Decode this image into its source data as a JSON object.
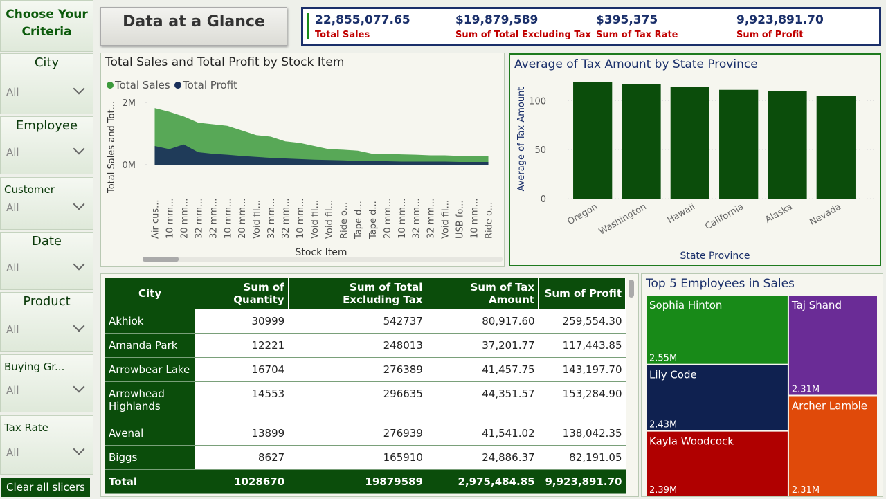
{
  "sidebar": {
    "title": "Choose Your Criteria",
    "slicers": [
      {
        "label": "City",
        "value": "All"
      },
      {
        "label": "Employee",
        "value": "All"
      },
      {
        "label": "Customer",
        "value": "All"
      },
      {
        "label": "Date",
        "value": "All"
      },
      {
        "label": "Product",
        "value": "All"
      },
      {
        "label": "Buying Gr...",
        "value": "All"
      },
      {
        "label": "Tax Rate",
        "value": "All"
      }
    ],
    "button": "Clear all slicers"
  },
  "header": {
    "title": "Data at a Glance"
  },
  "kpis": [
    {
      "value": "22,855,077.65",
      "label": "Total Sales"
    },
    {
      "value": "$19,879,589",
      "label": "Sum of Total Excluding Tax"
    },
    {
      "value": "$395,375",
      "label": "Sum of Tax Rate"
    },
    {
      "value": "9,923,891.70",
      "label": "Sum of Profit"
    }
  ],
  "chart_data": [
    {
      "type": "area",
      "title": "Total Sales and Total Profit by Stock Item",
      "x_label": "Stock Item",
      "y_label": "Total Sales and Tot...",
      "categories": [
        "Air cus...",
        "10 mm...",
        "20 mm...",
        "32 mm...",
        "32 mm...",
        "10 mm...",
        "20 mm...",
        "Void fil...",
        "32 mm...",
        "32 mm...",
        "10 mm...",
        "Void fil...",
        "Void fil...",
        "Ride o...",
        "Tape d...",
        "Tape d...",
        "20 mm...",
        "10 mm...",
        "32 mm...",
        "32 mm...",
        "Void fil...",
        "USB fo...",
        "10 mm...",
        "Ride o..."
      ],
      "series": [
        {
          "name": "Total Sales",
          "color": "#3c9a3c",
          "values": [
            1820000,
            1700000,
            1550000,
            1350000,
            1300000,
            1250000,
            1100000,
            950000,
            900000,
            750000,
            700000,
            600000,
            500000,
            480000,
            450000,
            350000,
            350000,
            330000,
            320000,
            300000,
            300000,
            280000,
            280000,
            280000
          ]
        },
        {
          "name": "Total Profit",
          "color": "#1a2f5a",
          "values": [
            600000,
            500000,
            650000,
            400000,
            350000,
            320000,
            280000,
            250000,
            220000,
            200000,
            180000,
            160000,
            150000,
            140000,
            120000,
            120000,
            110000,
            100000,
            100000,
            100000,
            100000,
            90000,
            90000,
            90000
          ]
        }
      ],
      "ylim": [
        0,
        2000000
      ],
      "yticks": [
        {
          "value": 0,
          "label": "0M"
        },
        {
          "value": 2000000,
          "label": "2M"
        }
      ]
    },
    {
      "type": "bar",
      "title": "Average of Tax Amount by State Province",
      "x_label": "State Province",
      "y_label": "Average of Tax Amount",
      "categories": [
        "Oregon",
        "Washington",
        "Hawaii",
        "California",
        "Alaska",
        "Nevada"
      ],
      "values": [
        119,
        117,
        114,
        111,
        110,
        105
      ],
      "color": "#0b4d0b",
      "ylim": [
        0,
        120
      ],
      "yticks": [
        0,
        50,
        100
      ],
      "grid": true
    },
    {
      "type": "treemap",
      "title": "Top 5 Employees in Sales",
      "categories": [
        "Sophia Hinton",
        "Lily Code",
        "Kayla Woodcock",
        "Taj Shand",
        "Archer Lamble"
      ],
      "values": [
        2550000,
        2430000,
        2390000,
        2310000,
        2310000
      ],
      "value_labels": [
        "2.55M",
        "2.43M",
        "2.39M",
        "2.31M",
        "2.31M"
      ],
      "colors": [
        "#188a18",
        "#0f2150",
        "#b00000",
        "#6a2c96",
        "#e04a0a"
      ]
    }
  ],
  "table": {
    "columns": [
      "City",
      "Sum of Quantity",
      "Sum of Total Excluding Tax",
      "Sum of Tax Amount",
      "Sum of Profit"
    ],
    "rows": [
      [
        "Akhiok",
        "30999",
        "542737",
        "80,917.60",
        "259,554.30"
      ],
      [
        "Amanda Park",
        "12221",
        "248013",
        "37,201.77",
        "117,443.85"
      ],
      [
        "Arrowbear Lake",
        "16704",
        "276389",
        "41,457.75",
        "143,197.70"
      ],
      [
        "Arrowhead Highlands",
        "14553",
        "296635",
        "44,351.57",
        "153,284.90"
      ],
      [
        "Avenal",
        "13899",
        "276939",
        "41,541.02",
        "138,042.35"
      ],
      [
        "Biggs",
        "8627",
        "165910",
        "24,886.37",
        "82,191.05"
      ]
    ],
    "total": [
      "Total",
      "1028670",
      "19879589",
      "2,975,484.85",
      "9,923,891.70"
    ]
  }
}
